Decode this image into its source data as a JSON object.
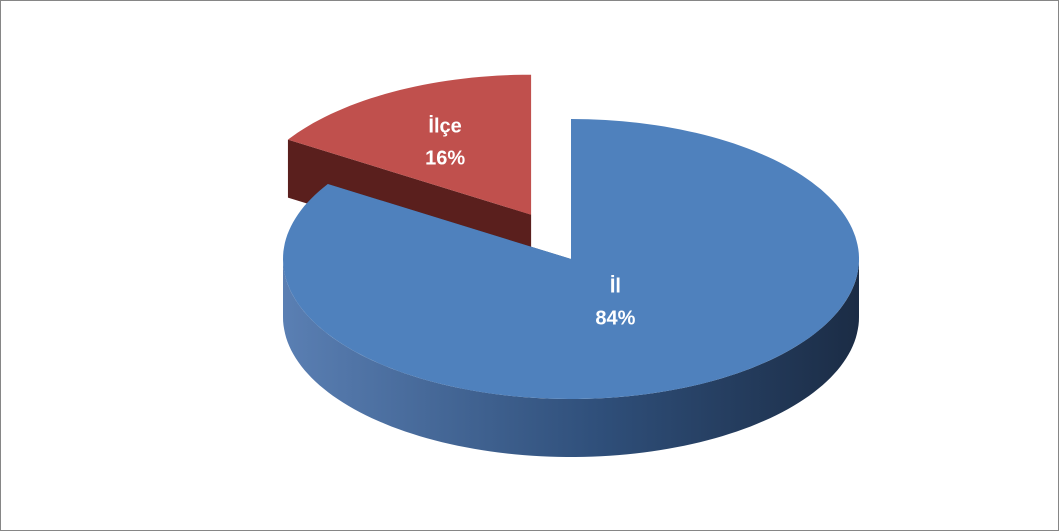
{
  "chart_data": {
    "type": "pie",
    "style": "3d-exploded",
    "title": "",
    "slices": [
      {
        "name": "İl",
        "value": 84,
        "label": "84%",
        "color": "#4F81BD",
        "side_color": "#2C4A70"
      },
      {
        "name": "İlçe",
        "value": 16,
        "label": "16%",
        "color": "#C0504D",
        "side_color": "#5A1F1D"
      }
    ],
    "legend": "none",
    "data_labels": "inside"
  }
}
